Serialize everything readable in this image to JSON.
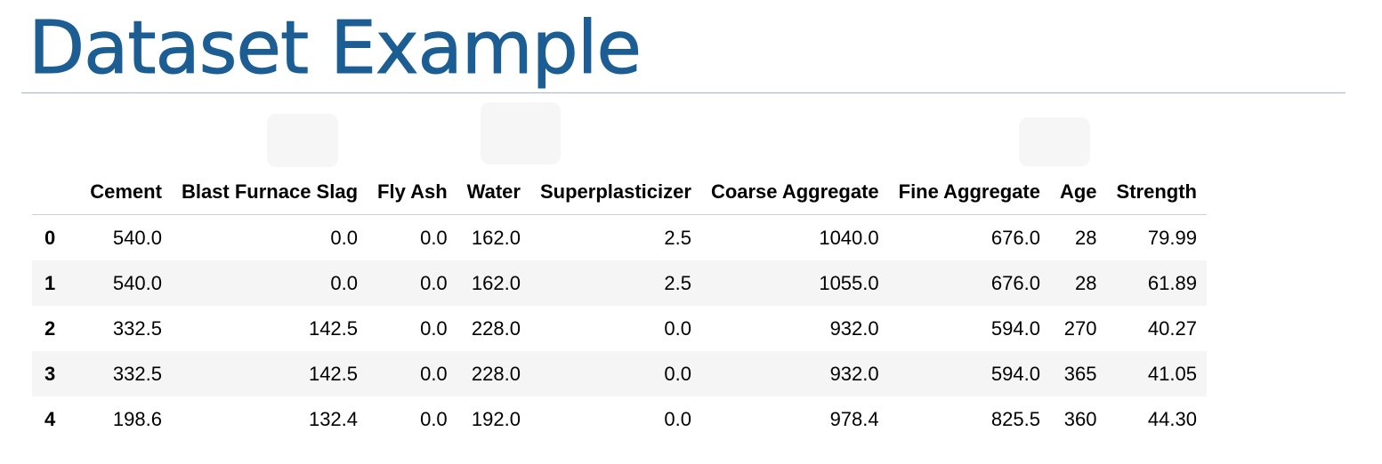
{
  "slide": {
    "title": "Dataset Example"
  },
  "table": {
    "columns": [
      "Cement",
      "Blast Furnace Slag",
      "Fly Ash",
      "Water",
      "Superplasticizer",
      "Coarse Aggregate",
      "Fine Aggregate",
      "Age",
      "Strength"
    ],
    "rows": [
      {
        "index": "0",
        "cells": [
          "540.0",
          "0.0",
          "0.0",
          "162.0",
          "2.5",
          "1040.0",
          "676.0",
          "28",
          "79.99"
        ]
      },
      {
        "index": "1",
        "cells": [
          "540.0",
          "0.0",
          "0.0",
          "162.0",
          "2.5",
          "1055.0",
          "676.0",
          "28",
          "61.89"
        ]
      },
      {
        "index": "2",
        "cells": [
          "332.5",
          "142.5",
          "0.0",
          "228.0",
          "0.0",
          "932.0",
          "594.0",
          "270",
          "40.27"
        ]
      },
      {
        "index": "3",
        "cells": [
          "332.5",
          "142.5",
          "0.0",
          "228.0",
          "0.0",
          "932.0",
          "594.0",
          "365",
          "41.05"
        ]
      },
      {
        "index": "4",
        "cells": [
          "198.6",
          "132.4",
          "0.0",
          "192.0",
          "0.0",
          "978.4",
          "825.5",
          "360",
          "44.30"
        ]
      }
    ]
  }
}
